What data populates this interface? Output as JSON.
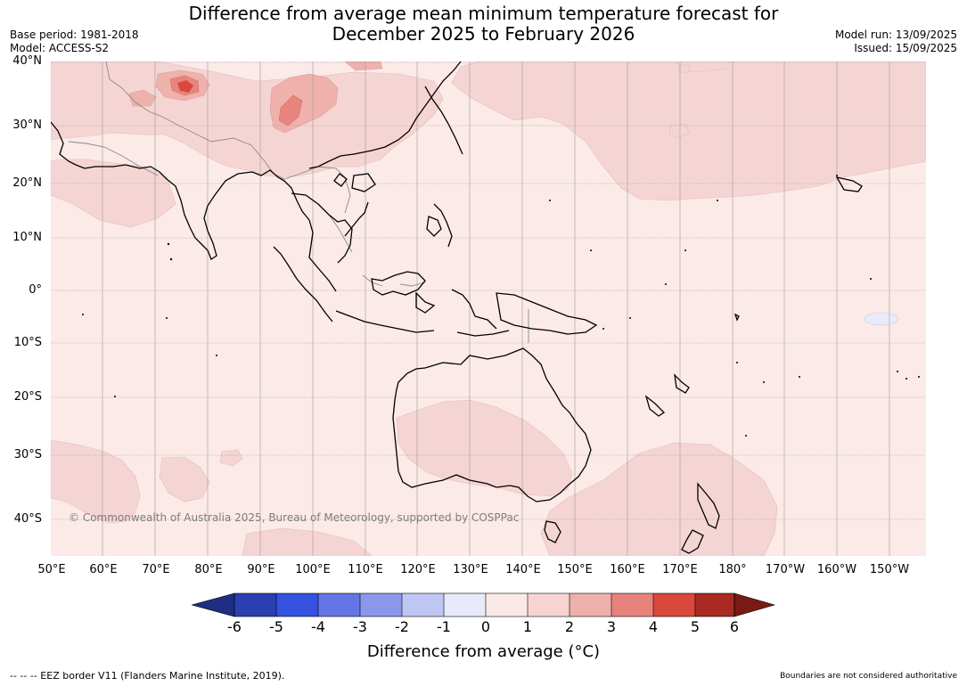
{
  "title_line1": "Difference from average mean minimum temperature forecast for",
  "title_line2": "December 2025 to February 2026",
  "meta_left": {
    "base_period": "Base period: 1981-2018",
    "model": "Model: ACCESS-S2"
  },
  "meta_right": {
    "model_run": "Model run: 13/09/2025",
    "issued": "Issued: 15/09/2025"
  },
  "lat_labels": [
    "40°N",
    "30°N",
    "20°N",
    "10°N",
    "0°",
    "10°S",
    "20°S",
    "30°S",
    "40°S"
  ],
  "lon_labels": [
    "50°E",
    "60°E",
    "70°E",
    "80°E",
    "90°E",
    "100°E",
    "110°E",
    "120°E",
    "130°E",
    "140°E",
    "150°E",
    "160°E",
    "170°E",
    "180°",
    "170°W",
    "160°W",
    "150°W"
  ],
  "copyright": "© Commonwealth of Australia 2025, Bureau of Meteorology, supported by COSPPac",
  "colorbar": {
    "ticks": [
      "-6",
      "-5",
      "-4",
      "-3",
      "-2",
      "-1",
      "0",
      "1",
      "2",
      "3",
      "4",
      "5",
      "6"
    ],
    "colors": [
      "#1f2e82",
      "#2a3fb0",
      "#3451e0",
      "#6476e6",
      "#8a98ec",
      "#bfc6f3",
      "#e8eafb",
      "#fbe9e8",
      "#f6d4d2",
      "#eeb0ab",
      "#e7837c",
      "#d9473d",
      "#a82a22",
      "#7a1a14"
    ],
    "label": "Difference from average (°C)"
  },
  "footer_left": "-- -- -- EEZ border V11 (Flanders Marine Institute, 2019).",
  "footer_right": "Boundaries are not considered authoritative",
  "map_colors": {
    "ocean_base": "#fbeae8",
    "warm_1_2": "#f5d5d3",
    "warm_2_3": "#eeb1ac",
    "warm_3_4": "#e8857e",
    "warm_4_5": "#d9473d",
    "cool_0_1": "#e9ebfb",
    "coast": "#000000",
    "border": "#888888"
  }
}
